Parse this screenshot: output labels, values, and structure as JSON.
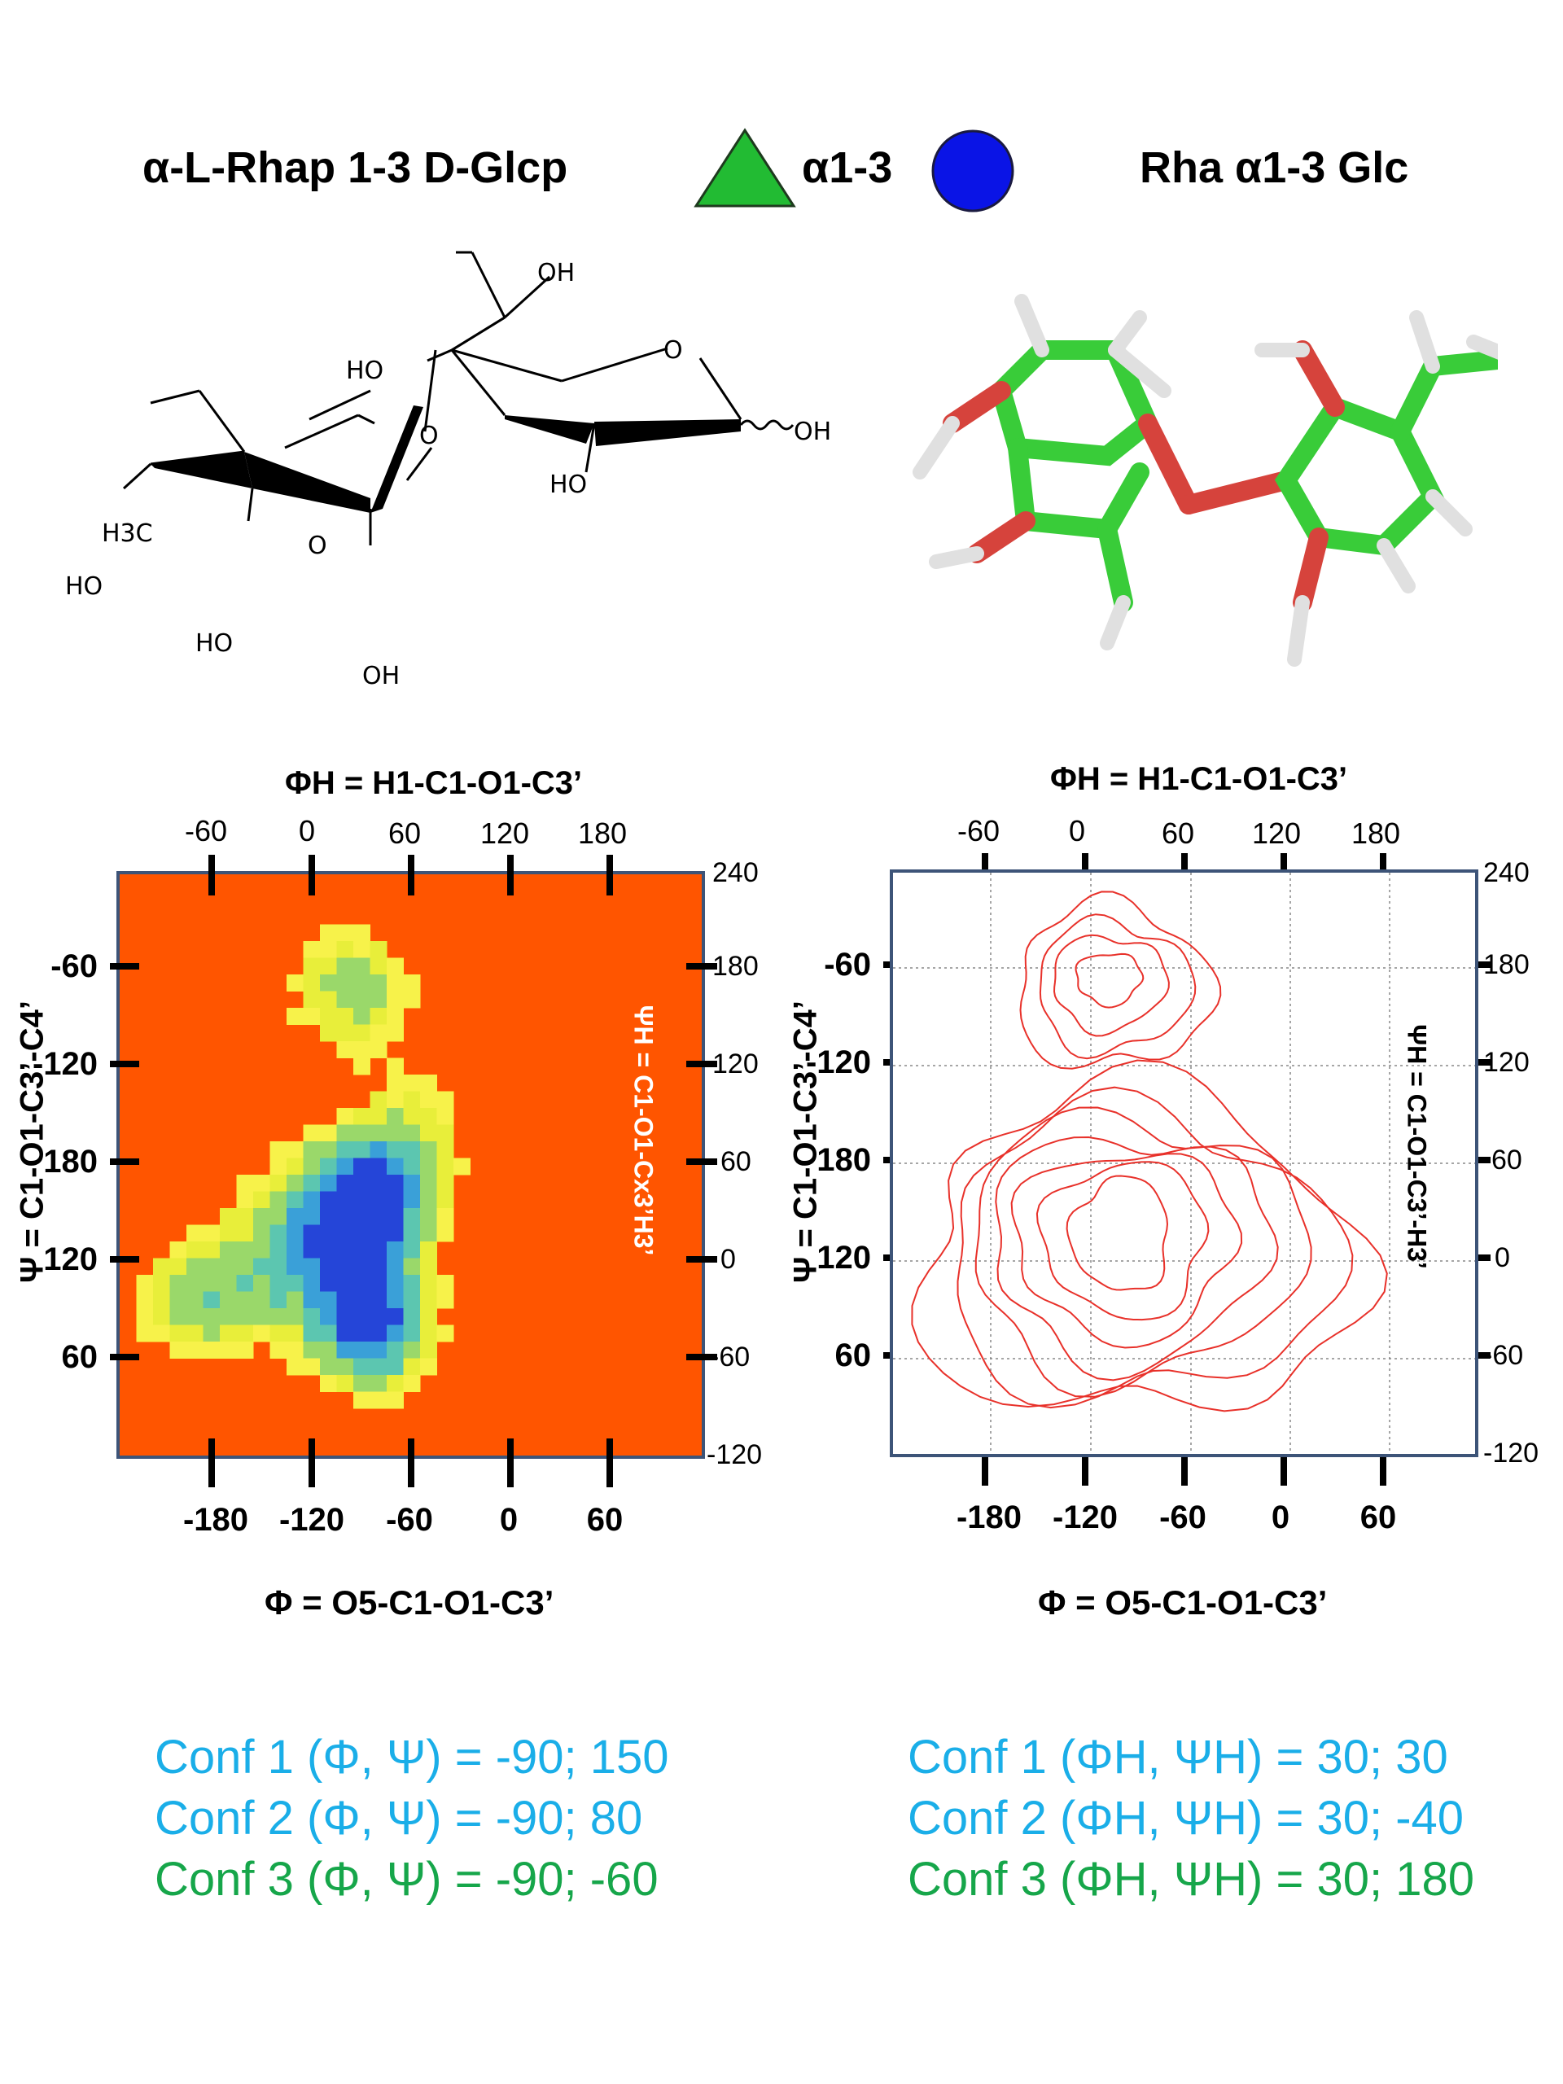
{
  "header": {
    "left_title": "α-L-Rhap 1-3 D-Glcp",
    "linkage": "α1-3",
    "right_title": "Rha α1-3 Glc",
    "triangle_color": "#22bb33",
    "circle_color": "#0a14e6"
  },
  "structure_labels": {
    "oh_top": "OH",
    "ho_glc4": "HO",
    "o_ring_glc": "O",
    "o_glyco": "O",
    "oh_anomeric": "OH",
    "ho_glc2": "HO",
    "ch3": "H3C",
    "o_ring_rha": "O",
    "ho_rha4": "HO",
    "ho_rha3": "HO",
    "oh_rha2": "OH"
  },
  "plots": [
    {
      "kind": "heatmap",
      "top_title": "ΦH = H1-C1-O1-C3’",
      "top_ticks": [
        "-60",
        "0",
        "60",
        "120",
        "180"
      ],
      "bottom_ticks": [
        "-180",
        "-120",
        "-60",
        "0",
        "60"
      ],
      "left_ticks": [
        "-60",
        "-120",
        "180",
        "120",
        "60"
      ],
      "right_ticks": [
        "240",
        "180",
        "120",
        "60",
        "0",
        "-60",
        "-120"
      ],
      "left_title": "Ψ = C1-O1-C3’-C4’",
      "right_title": "ΨH = C1-O1-Cx3’H3’",
      "bottom_title": "Φ = O5-C1-O1-C3’"
    },
    {
      "kind": "contour",
      "top_title": "ΦH = H1-C1-O1-C3’",
      "top_ticks": [
        "-60",
        "0",
        "60",
        "120",
        "180"
      ],
      "bottom_ticks": [
        "-180",
        "-120",
        "-60",
        "0",
        "60"
      ],
      "left_ticks": [
        "-60",
        "-120",
        "180",
        "120",
        "60"
      ],
      "right_ticks": [
        "240",
        "180",
        "120",
        "60",
        "0",
        "-60",
        "-120"
      ],
      "left_title": "Ψ = C1-O1-C3’-C4’",
      "right_title": "ΨH = C1-O1-C3’-H3’",
      "bottom_title": "Φ = O5-C1-O1-C3’"
    }
  ],
  "conformations_left": [
    {
      "label": "Conf 1 (Φ, Ψ) =  -90; 150",
      "color": "#1aaee8"
    },
    {
      "label": "Conf 2 (Φ, Ψ) =   -90;  80",
      "color": "#1aaee8"
    },
    {
      "label": "Conf 3 (Φ, Ψ) =   -90; -60",
      "color": "#16a64a"
    }
  ],
  "conformations_right": [
    {
      "label": "Conf 1 (ΦH, ΨH) =  30; 30",
      "color": "#1aaee8"
    },
    {
      "label": "Conf 2 (ΦH, ΨH) =  30; -40",
      "color": "#1aaee8"
    },
    {
      "label": "Conf 3 (ΦH, ΨH) =  30; 180",
      "color": "#16a64a"
    }
  ],
  "chart_data": [
    {
      "type": "heatmap",
      "x_axis": {
        "label": "Φ = O5-C1-O1-C3’",
        "ticks": [
          -180,
          -120,
          -60,
          0,
          60
        ]
      },
      "x_top_axis": {
        "label": "ΦH = H1-C1-O1-C3’",
        "ticks": [
          -60,
          0,
          60,
          120,
          180
        ]
      },
      "y_axis": {
        "label": "Ψ = C1-O1-C3’-C4’",
        "ticks": [
          -60,
          -120,
          180,
          120,
          60
        ]
      },
      "y_right_axis": {
        "label": "ΨH = C1-O1-Cx3’H3’",
        "ticks": [
          240,
          180,
          120,
          60,
          0,
          -60,
          -120
        ]
      },
      "xlim": [
        -240,
        115
      ],
      "ylim_right": [
        -120,
        240
      ],
      "colormap": [
        "#2545d8",
        "#3aa0d8",
        "#5cc6b0",
        "#9ad86a",
        "#e8ee3a",
        "#f7f24a",
        "#ff5500"
      ],
      "minima": [
        {
          "phi": -90,
          "psi": 150
        },
        {
          "phi": -90,
          "psi": 80
        },
        {
          "phi": -90,
          "psi": -60
        }
      ]
    },
    {
      "type": "contour",
      "x_axis": {
        "label": "Φ = O5-C1-O1-C3’",
        "ticks": [
          -180,
          -120,
          -60,
          0,
          60
        ]
      },
      "x_top_axis": {
        "label": "ΦH = H1-C1-O1-C3’",
        "ticks": [
          -60,
          0,
          60,
          120,
          180
        ]
      },
      "y_axis": {
        "label": "Ψ = C1-O1-C3’-C4’",
        "ticks": [
          -60,
          -120,
          180,
          120,
          60
        ]
      },
      "y_right_axis": {
        "label": "ΨH = C1-O1-C3’-H3’",
        "ticks": [
          240,
          180,
          120,
          60,
          0,
          -60,
          -120
        ]
      },
      "grid": true,
      "line_color": "#e8312a",
      "xlim": [
        -240,
        115
      ],
      "ylim_right": [
        -120,
        240
      ]
    }
  ]
}
